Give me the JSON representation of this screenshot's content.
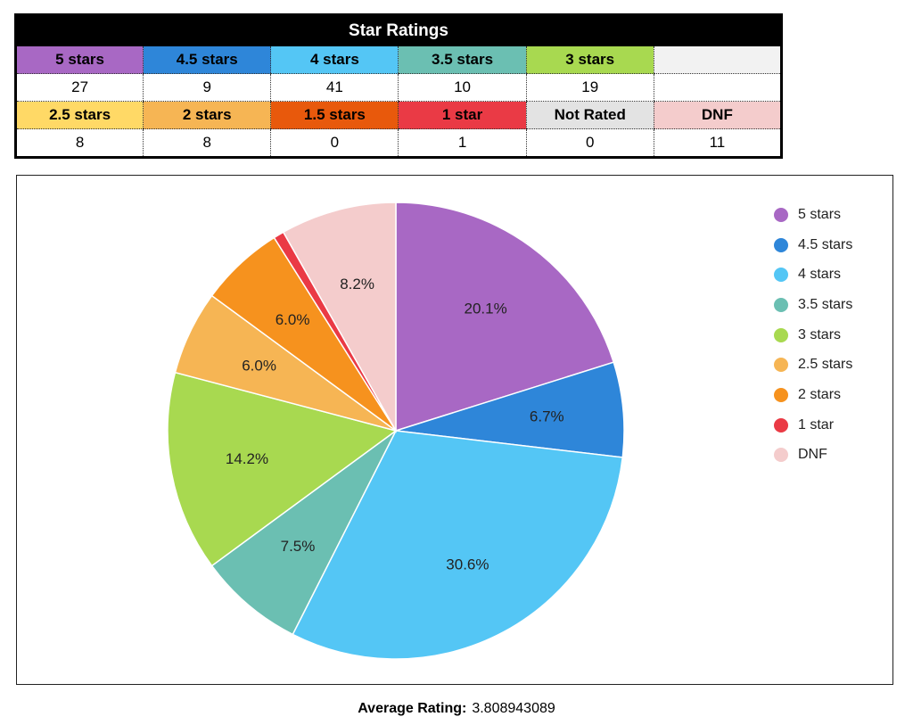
{
  "table": {
    "title": "Star Ratings",
    "rows": [
      [
        {
          "label": "5 stars",
          "value": "27",
          "color": "#a868c4"
        },
        {
          "label": "4.5 stars",
          "value": "9",
          "color": "#2e86d9"
        },
        {
          "label": "4 stars",
          "value": "41",
          "color": "#54c6f5"
        },
        {
          "label": "3.5 stars",
          "value": "10",
          "color": "#6bbfb2"
        },
        {
          "label": "3 stars",
          "value": "19",
          "color": "#a8d950"
        },
        {
          "label": "",
          "value": "",
          "color": "#f2f2f2"
        }
      ],
      [
        {
          "label": "2.5 stars",
          "value": "8",
          "color": "#ffd966"
        },
        {
          "label": "2 stars",
          "value": "8",
          "color": "#f6b554"
        },
        {
          "label": "1.5 stars",
          "value": "0",
          "color": "#e8590c"
        },
        {
          "label": "1 star",
          "value": "1",
          "color": "#ea3a45"
        },
        {
          "label": "Not Rated",
          "value": "0",
          "color": "#e3e3e3"
        },
        {
          "label": "DNF",
          "value": "11",
          "color": "#f4cccc"
        }
      ]
    ]
  },
  "chart_data": {
    "type": "pie",
    "title": "",
    "start_angle_deg": 0,
    "direction": "clockwise",
    "legend_position": "right",
    "categories": [
      "5 stars",
      "4.5 stars",
      "4 stars",
      "3.5 stars",
      "3 stars",
      "2.5 stars",
      "2 stars",
      "1 star",
      "DNF"
    ],
    "values": [
      27,
      9,
      41,
      10,
      19,
      8,
      8,
      1,
      11
    ],
    "data_labels": [
      "20.1%",
      "6.7%",
      "30.6%",
      "7.5%",
      "14.2%",
      "6.0%",
      "6.0%",
      "",
      "8.2%"
    ],
    "colors": [
      "#a868c4",
      "#2e86d9",
      "#54c6f5",
      "#6bbfb2",
      "#a8d950",
      "#f6b554",
      "#f6921e",
      "#ea3a45",
      "#f4cccc"
    ]
  },
  "footer": {
    "average_label": "Average Rating:",
    "average_value": "3.808943089"
  }
}
